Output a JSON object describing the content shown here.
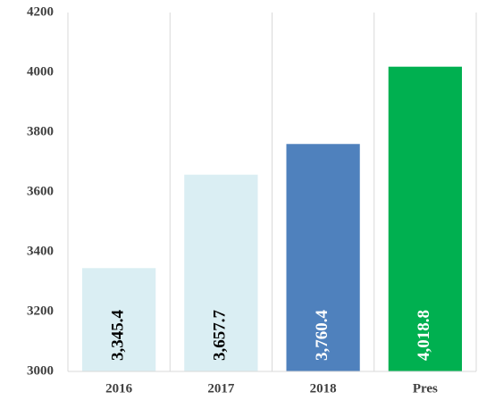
{
  "chart_data": {
    "type": "bar",
    "categories": [
      "2016",
      "2017",
      "2018",
      "Pres"
    ],
    "values": [
      3345.4,
      3657.7,
      3760.4,
      4018.8
    ],
    "value_labels": [
      "3,345.4",
      "3,657.7",
      "3,760.4",
      "4,018.8"
    ],
    "colors": [
      "#daeef3",
      "#daeef3",
      "#4f81bd",
      "#00b050"
    ],
    "label_colors": [
      "#000000",
      "#000000",
      "#ffffff",
      "#ffffff"
    ],
    "ylim": [
      3000,
      4200
    ],
    "yticks": [
      3000,
      3200,
      3400,
      3600,
      3800,
      4000,
      4200
    ]
  }
}
